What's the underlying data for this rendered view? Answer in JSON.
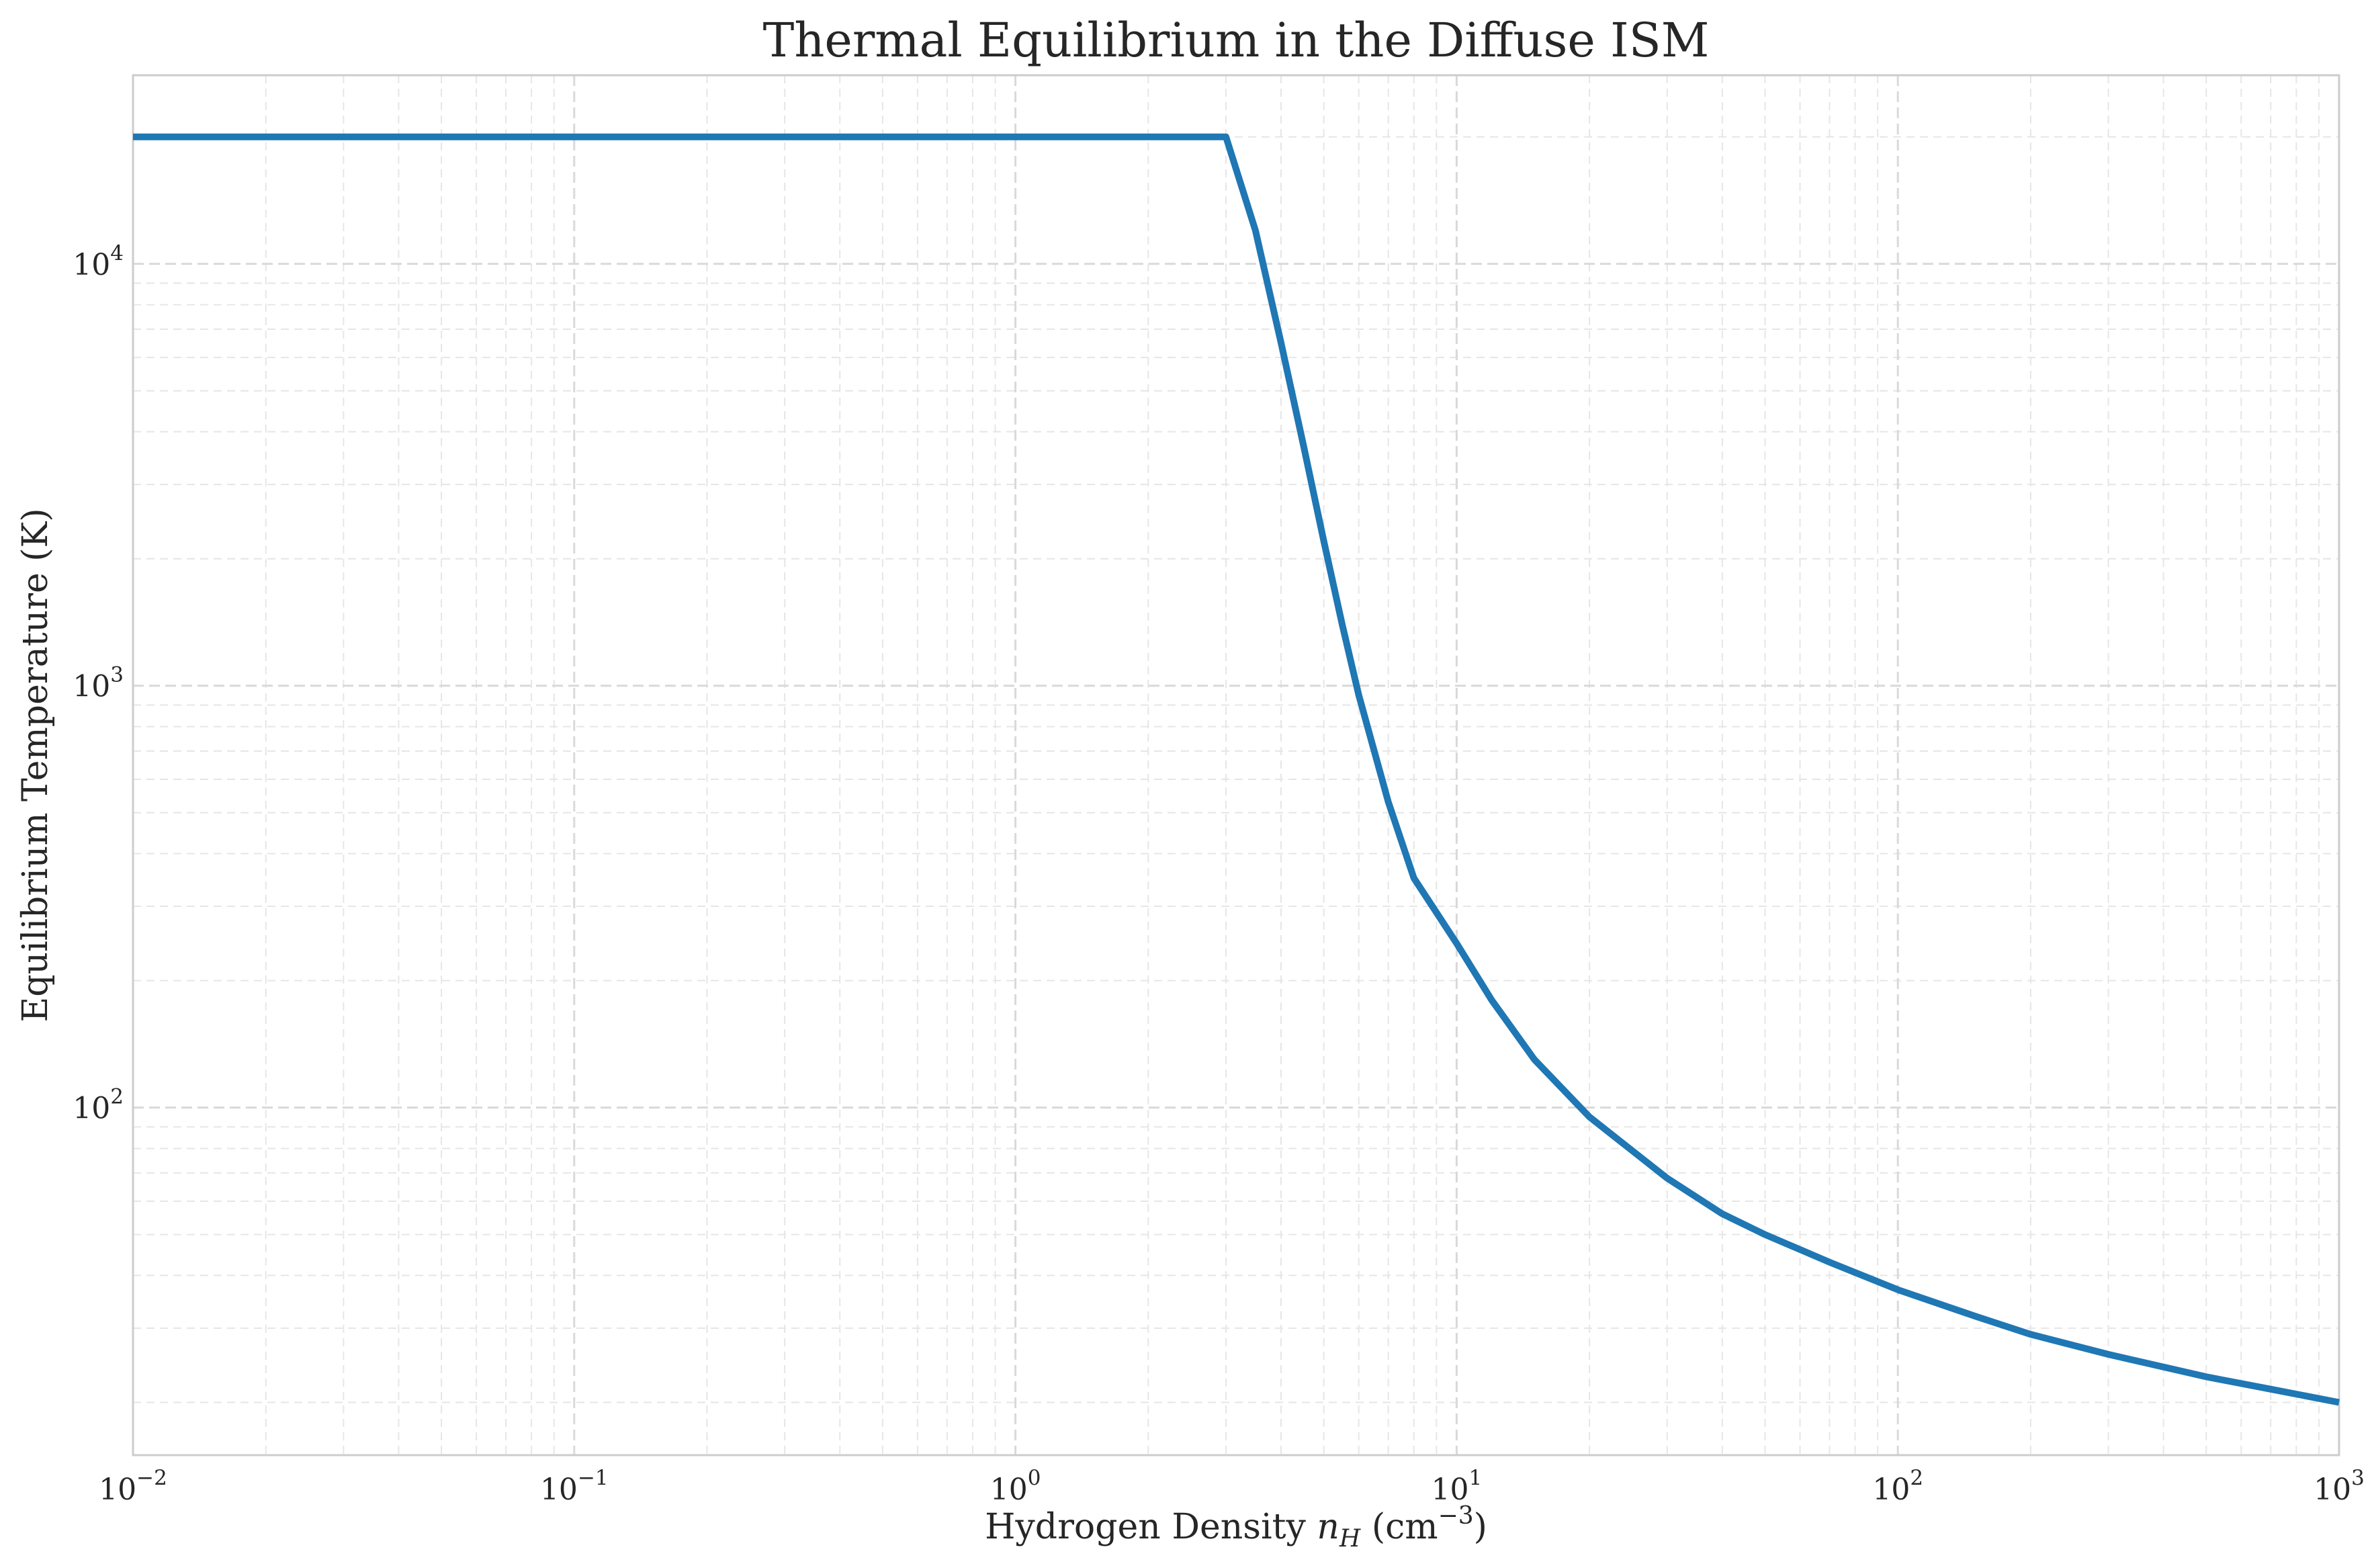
{
  "chart_data": {
    "type": "line",
    "title": "Thermal Equilibrium in the Diffuse ISM",
    "xlabel": "Hydrogen Density n_H (cm^-3)",
    "ylabel": "Equilibrium Temperature (K)",
    "x_scale": "log",
    "y_scale": "log",
    "xlim": [
      0.01,
      1000
    ],
    "ylim": [
      15,
      28000
    ],
    "x_ticks": [
      {
        "value": 0.01,
        "base": "10",
        "exp": "−2"
      },
      {
        "value": 0.1,
        "base": "10",
        "exp": "−1"
      },
      {
        "value": 1,
        "base": "10",
        "exp": "0"
      },
      {
        "value": 10,
        "base": "10",
        "exp": "1"
      },
      {
        "value": 100,
        "base": "10",
        "exp": "2"
      },
      {
        "value": 1000,
        "base": "10",
        "exp": "3"
      }
    ],
    "y_ticks": [
      {
        "value": 100,
        "base": "10",
        "exp": "2"
      },
      {
        "value": 1000,
        "base": "10",
        "exp": "3"
      },
      {
        "value": 10000,
        "base": "10",
        "exp": "4"
      }
    ],
    "grid": true,
    "color": "#1f77b4",
    "series": [
      {
        "x": [
          0.01,
          0.1,
          1,
          3,
          3.5,
          4,
          4.5,
          5,
          5.5,
          6,
          7,
          8,
          9,
          10,
          12,
          15,
          20,
          30,
          40,
          50,
          70,
          100,
          150,
          200,
          300,
          500,
          700,
          1000
        ],
        "y": [
          20000,
          20000,
          20000,
          20000,
          12000,
          6500,
          3700,
          2200,
          1400,
          950,
          530,
          350,
          290,
          245,
          180,
          130,
          95,
          68,
          56,
          50,
          43,
          37,
          32,
          29,
          26,
          23,
          21.5,
          20
        ]
      }
    ]
  }
}
